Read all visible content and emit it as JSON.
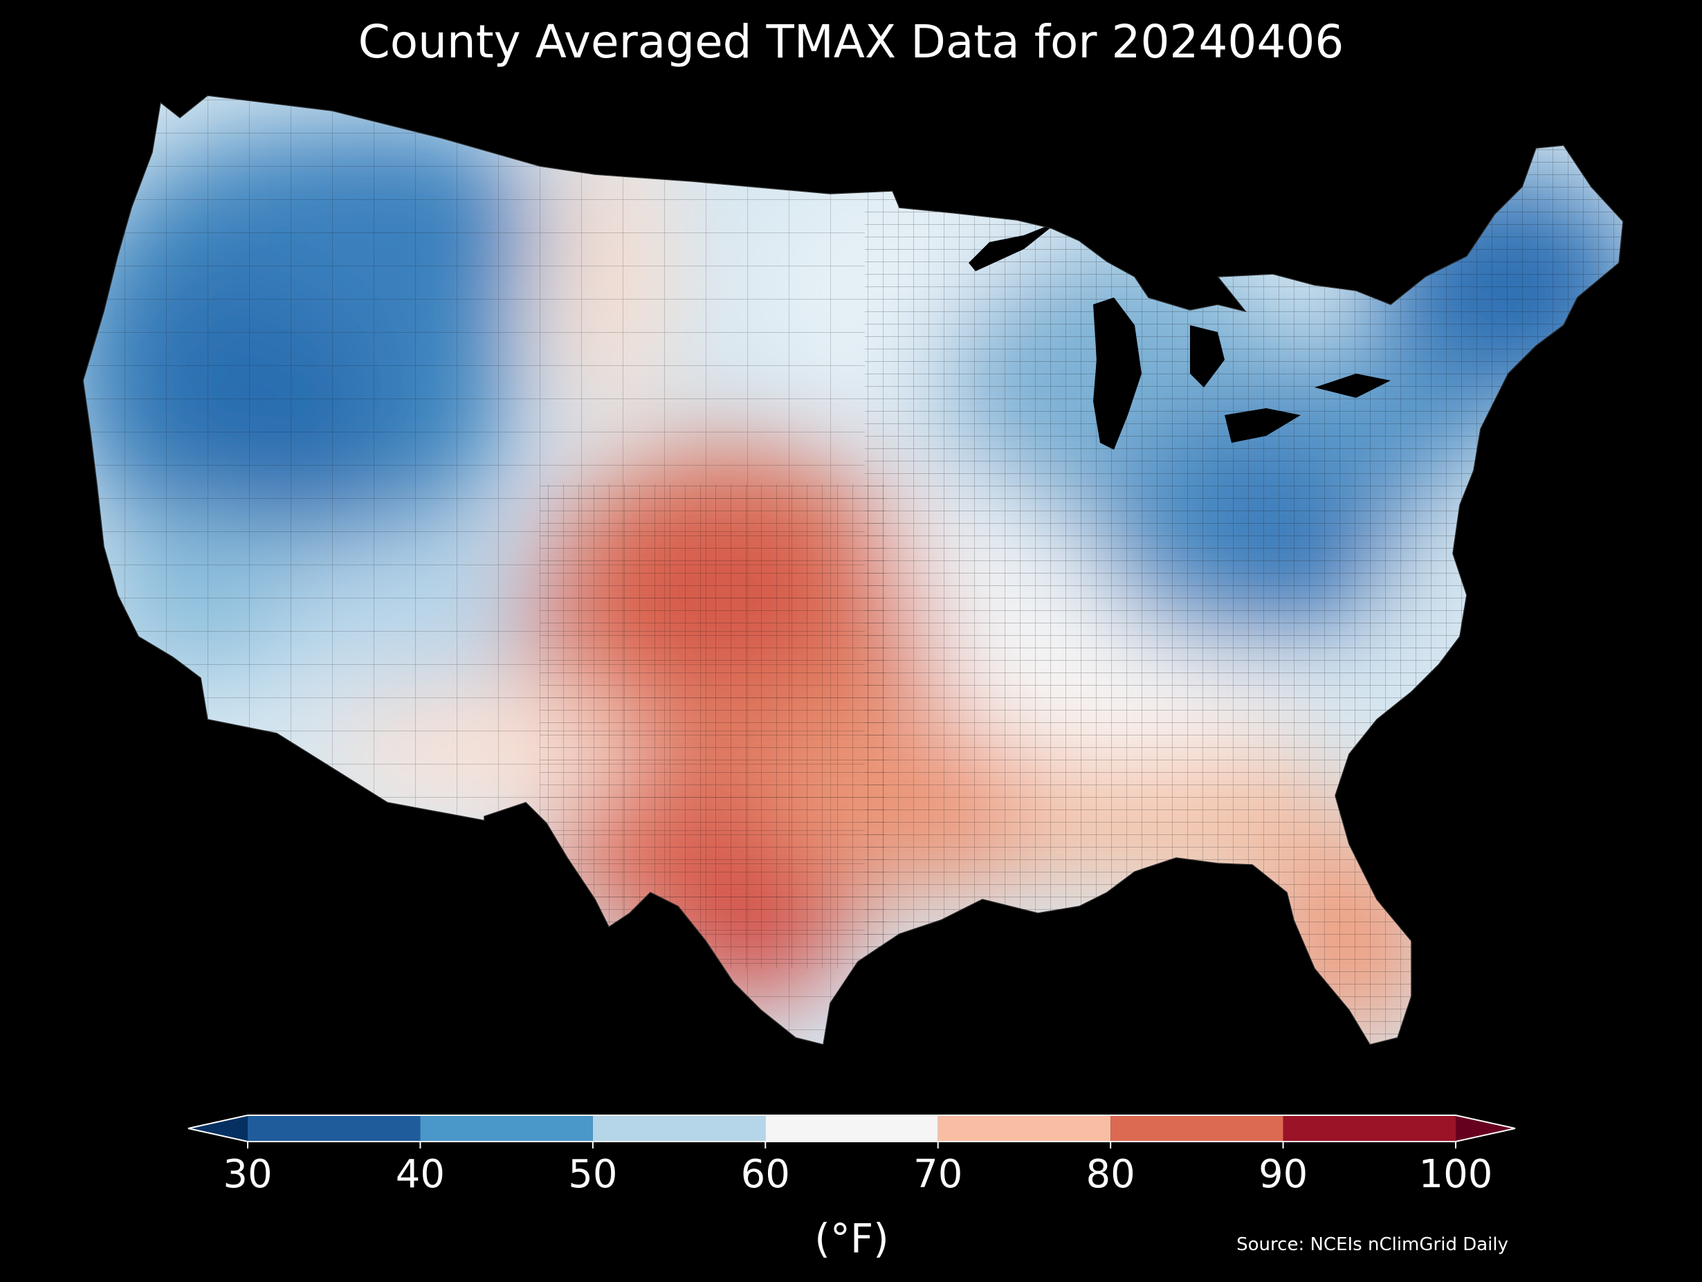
{
  "title": "County Averaged TMAX Data for 20240406",
  "colorbar": {
    "ticks": [
      "30",
      "40",
      "50",
      "60",
      "70",
      "80",
      "90",
      "100"
    ],
    "label": "(°F)",
    "bins": [
      {
        "from": 30,
        "to": 40,
        "color": "#1f5c9c"
      },
      {
        "from": 40,
        "to": 50,
        "color": "#4a97c9"
      },
      {
        "from": 50,
        "to": 60,
        "color": "#b5d5e9"
      },
      {
        "from": 60,
        "to": 70,
        "color": "#f5f5f5"
      },
      {
        "from": 70,
        "to": 80,
        "color": "#f8bea3"
      },
      {
        "from": 80,
        "to": 90,
        "color": "#dc6a53"
      },
      {
        "from": 90,
        "to": 100,
        "color": "#9b1326"
      }
    ],
    "under_color": "#053061",
    "over_color": "#67001f"
  },
  "source": "Source: NCEIs nClimGrid Daily",
  "map": {
    "region": "Contiguous United States",
    "variable": "TMAX",
    "date": "20240406"
  }
}
